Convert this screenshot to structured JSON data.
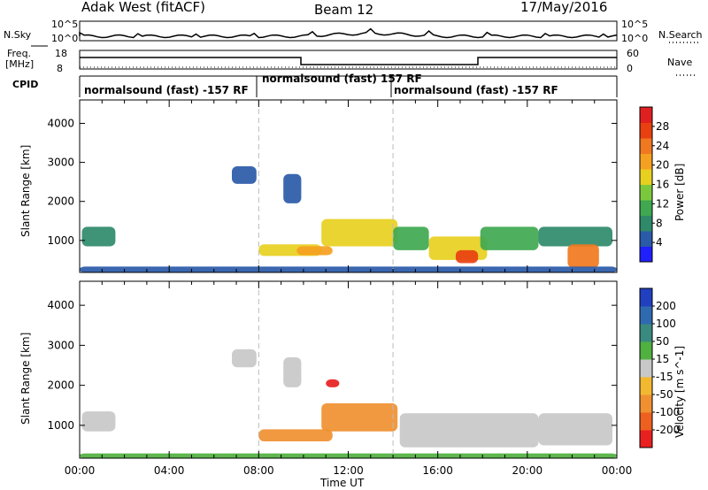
{
  "header": {
    "title": "Adak West (fitACF)",
    "beam": "Beam 12",
    "date": "17/May/2016"
  },
  "top_panels": {
    "nsky": {
      "label": "N.Sky",
      "ticks": [
        "10^5",
        "10^0"
      ]
    },
    "nsearch": {
      "label": "N.Search",
      "ticks": [
        "10^5",
        "10^0"
      ]
    },
    "freq": {
      "label_line1": "Freq.",
      "label_line2": "[MHz]",
      "ticks": [
        "18",
        "8"
      ]
    },
    "nave": {
      "label": "Nave",
      "ticks": [
        "60",
        "0"
      ]
    },
    "cpid": {
      "label": "CPID"
    }
  },
  "cpid_segments": [
    {
      "label": "normalsound (fast) -157 RF",
      "start_hour": 0
    },
    {
      "label": "normalsound (fast) 157 RF",
      "start_hour": 8
    },
    {
      "label": "normalsound (fast) -157 RF",
      "start_hour": 14
    }
  ],
  "chart_data": [
    {
      "type": "heatmap",
      "title": "Power",
      "xlabel": "Time UT",
      "ylabel": "Slant Range [km]",
      "x_ticks": [
        "00:00",
        "04:00",
        "08:00",
        "12:00",
        "16:00",
        "20:00",
        "00:00"
      ],
      "xlim_hours": [
        0,
        24
      ],
      "y_ticks": [
        1000,
        2000,
        3000,
        4000
      ],
      "ylim": [
        180,
        4600
      ],
      "colorbar": {
        "label": "Power [dB]",
        "ticks": [
          4,
          8,
          12,
          16,
          20,
          24,
          28
        ],
        "range": [
          0,
          32
        ],
        "colors": [
          "#2020ff",
          "#2a5aa8",
          "#2f8a6a",
          "#3fa850",
          "#7cc83c",
          "#e8d020",
          "#f5a020",
          "#f07820",
          "#e84010",
          "#e02020"
        ]
      },
      "vertical_markers_hours": [
        8,
        14
      ],
      "patches": [
        {
          "t0": 0.1,
          "t1": 1.6,
          "r0": 850,
          "r1": 1350,
          "level": 8
        },
        {
          "t0": 6.8,
          "t1": 7.9,
          "r0": 2450,
          "r1": 2900,
          "level": 6
        },
        {
          "t0": 9.1,
          "t1": 9.9,
          "r0": 1950,
          "r1": 2700,
          "level": 6
        },
        {
          "t0": 8.0,
          "t1": 10.8,
          "r0": 600,
          "r1": 900,
          "level": 18
        },
        {
          "t0": 9.7,
          "t1": 11.3,
          "r0": 620,
          "r1": 850,
          "level": 22
        },
        {
          "t0": 10.8,
          "t1": 14.2,
          "r0": 850,
          "r1": 1550,
          "level": 16
        },
        {
          "t0": 14.0,
          "t1": 15.6,
          "r0": 750,
          "r1": 1350,
          "level": 10
        },
        {
          "t0": 15.6,
          "t1": 18.2,
          "r0": 500,
          "r1": 1100,
          "level": 16
        },
        {
          "t0": 16.8,
          "t1": 17.8,
          "r0": 420,
          "r1": 750,
          "level": 26
        },
        {
          "t0": 17.9,
          "t1": 20.5,
          "r0": 750,
          "r1": 1350,
          "level": 12
        },
        {
          "t0": 20.5,
          "t1": 23.8,
          "r0": 850,
          "r1": 1350,
          "level": 8
        },
        {
          "t0": 21.8,
          "t1": 23.2,
          "r0": 300,
          "r1": 900,
          "level": 24
        },
        {
          "t0": 0,
          "t1": 24,
          "r0": 180,
          "r1": 330,
          "level": 6
        }
      ]
    },
    {
      "type": "heatmap",
      "title": "Velocity",
      "xlabel": "Time UT",
      "ylabel": "Slant Range [km]",
      "x_ticks": [
        "00:00",
        "04:00",
        "08:00",
        "12:00",
        "16:00",
        "20:00",
        "00:00"
      ],
      "xlim_hours": [
        0,
        24
      ],
      "y_ticks": [
        1000,
        2000,
        3000,
        4000
      ],
      "ylim": [
        180,
        4600
      ],
      "colorbar": {
        "label": "Velocity [m s^-1]",
        "ticks": [
          "200",
          "100",
          "50",
          "15",
          "-15",
          "-50",
          "-100",
          "-200"
        ],
        "colors": [
          "#2040c0",
          "#2f6ab0",
          "#3a8a80",
          "#50b040",
          "#c8c8c8",
          "#f2b830",
          "#f09030",
          "#ee6020",
          "#e82020"
        ]
      },
      "vertical_markers_hours": [
        8,
        14
      ],
      "patches": [
        {
          "t0": 0.1,
          "t1": 1.6,
          "r0": 850,
          "r1": 1350,
          "color": "#c8c8c8"
        },
        {
          "t0": 6.8,
          "t1": 7.9,
          "r0": 2450,
          "r1": 2900,
          "color": "#c8c8c8"
        },
        {
          "t0": 9.1,
          "t1": 9.9,
          "r0": 1950,
          "r1": 2700,
          "color": "#c8c8c8"
        },
        {
          "t0": 8.0,
          "t1": 11.3,
          "r0": 600,
          "r1": 900,
          "color": "#f09030"
        },
        {
          "t0": 10.8,
          "t1": 14.2,
          "r0": 850,
          "r1": 1550,
          "color": "#f09030"
        },
        {
          "t0": 11.0,
          "t1": 11.6,
          "r0": 1950,
          "r1": 2150,
          "color": "#e82020"
        },
        {
          "t0": 14.3,
          "t1": 20.5,
          "r0": 450,
          "r1": 1300,
          "color": "#c8c8c8"
        },
        {
          "t0": 20.5,
          "t1": 23.8,
          "r0": 500,
          "r1": 1300,
          "color": "#c8c8c8"
        },
        {
          "t0": 0,
          "t1": 24,
          "r0": 180,
          "r1": 300,
          "color": "#50b040"
        }
      ]
    }
  ]
}
